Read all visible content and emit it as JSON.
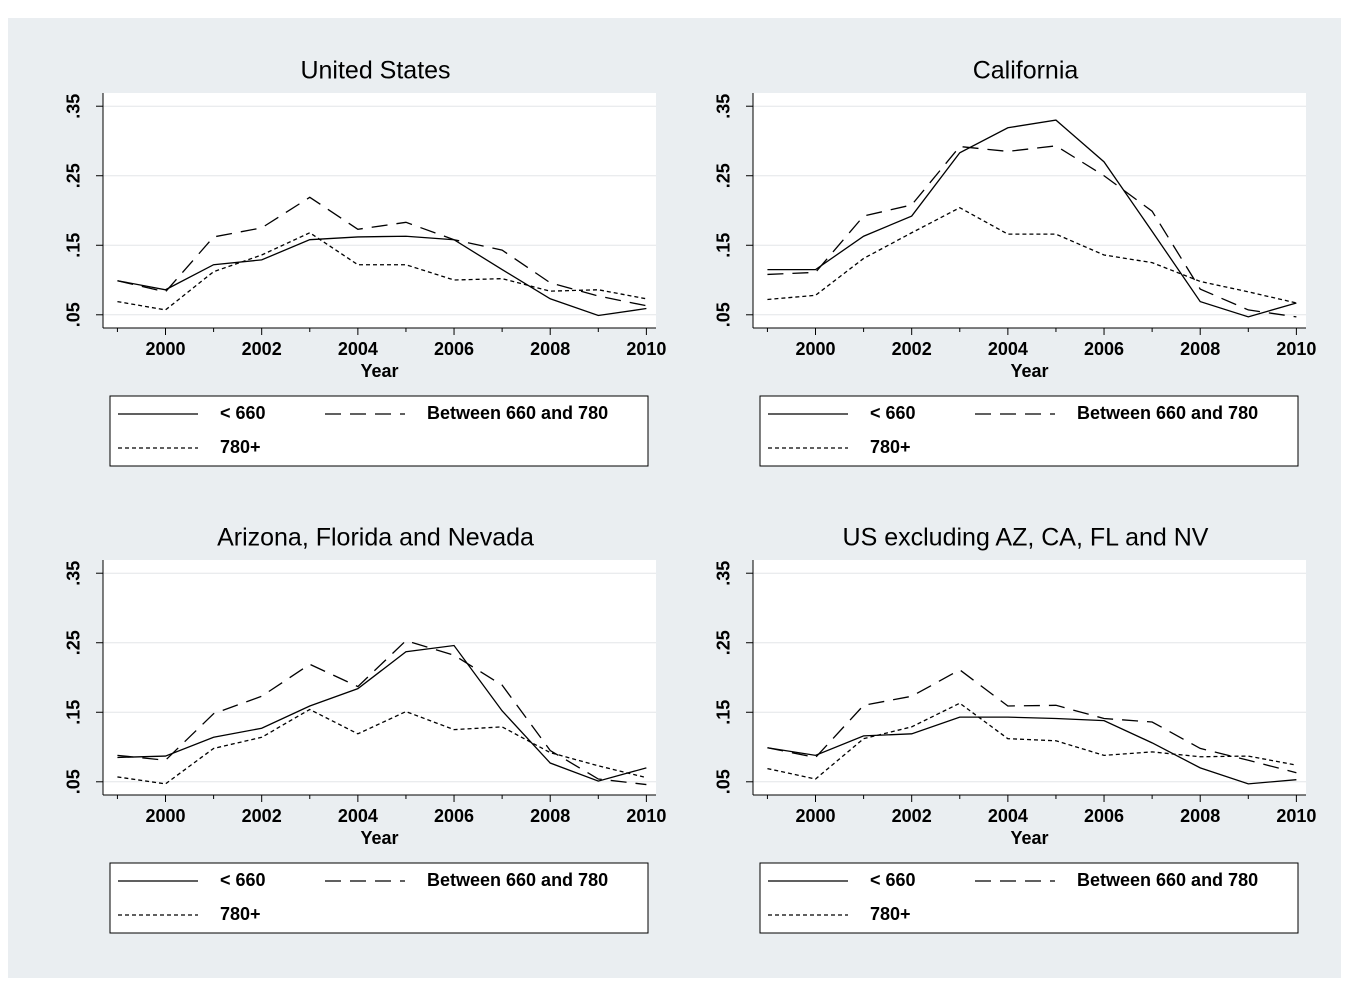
{
  "chart_data": [
    {
      "type": "line",
      "title": "United States",
      "xlabel": "Year",
      "x": [
        1999,
        2000,
        2001,
        2002,
        2003,
        2004,
        2005,
        2006,
        2007,
        2008,
        2009,
        2010
      ],
      "xlim": [
        1998.7,
        2010.2
      ],
      "xticks": [
        2000,
        2002,
        2004,
        2006,
        2008,
        2010
      ],
      "xminorticks": [
        1999,
        2001,
        2003,
        2005,
        2007,
        2009
      ],
      "ylim": [
        0.031,
        0.369
      ],
      "yticks": [
        {
          "value": 0.05,
          "label": ".05"
        },
        {
          "value": 0.15,
          "label": ".15"
        },
        {
          "value": 0.25,
          "label": ".25"
        },
        {
          "value": 0.35,
          "label": ".35"
        }
      ],
      "grid": true,
      "series": [
        {
          "name": "< 660",
          "color": "#000000",
          "line_style": "solid",
          "values": [
            0.099,
            0.086,
            0.122,
            0.129,
            0.158,
            0.162,
            0.163,
            0.158,
            0.115,
            0.073,
            0.049,
            0.059
          ]
        },
        {
          "name": "Between 660 and 780",
          "color": "#000000",
          "line_style": "longdash",
          "values": [
            0.099,
            0.083,
            0.162,
            0.175,
            0.219,
            0.173,
            0.183,
            0.158,
            0.143,
            0.096,
            0.077,
            0.063
          ]
        },
        {
          "name": "780+",
          "color": "#000000",
          "line_style": "shortdash",
          "values": [
            0.069,
            0.057,
            0.112,
            0.136,
            0.168,
            0.122,
            0.122,
            0.1,
            0.102,
            0.084,
            0.086,
            0.073
          ]
        }
      ]
    },
    {
      "type": "line",
      "title": "California",
      "xlabel": "Year",
      "x": [
        1999,
        2000,
        2001,
        2002,
        2003,
        2004,
        2005,
        2006,
        2007,
        2008,
        2009,
        2010
      ],
      "xlim": [
        1998.7,
        2010.2
      ],
      "xticks": [
        2000,
        2002,
        2004,
        2006,
        2008,
        2010
      ],
      "xminorticks": [
        1999,
        2001,
        2003,
        2005,
        2007,
        2009
      ],
      "ylim": [
        0.031,
        0.369
      ],
      "yticks": [
        {
          "value": 0.05,
          "label": ".05"
        },
        {
          "value": 0.15,
          "label": ".15"
        },
        {
          "value": 0.25,
          "label": ".25"
        },
        {
          "value": 0.35,
          "label": ".35"
        }
      ],
      "grid": true,
      "series": [
        {
          "name": "< 660",
          "color": "#000000",
          "line_style": "solid",
          "values": [
            0.115,
            0.115,
            0.163,
            0.192,
            0.283,
            0.319,
            0.33,
            0.27,
            0.17,
            0.069,
            0.047,
            0.067
          ]
        },
        {
          "name": "Between 660 and 780",
          "color": "#000000",
          "line_style": "longdash",
          "values": [
            0.108,
            0.111,
            0.192,
            0.208,
            0.292,
            0.285,
            0.293,
            0.25,
            0.199,
            0.087,
            0.057,
            0.047
          ]
        },
        {
          "name": "780+",
          "color": "#000000",
          "line_style": "shortdash",
          "values": [
            0.072,
            0.078,
            0.131,
            0.168,
            0.204,
            0.166,
            0.166,
            0.136,
            0.125,
            0.098,
            0.083,
            0.067
          ]
        }
      ]
    },
    {
      "type": "line",
      "title": "Arizona, Florida and Nevada",
      "xlabel": "Year",
      "x": [
        1999,
        2000,
        2001,
        2002,
        2003,
        2004,
        2005,
        2006,
        2007,
        2008,
        2009,
        2010
      ],
      "xlim": [
        1998.7,
        2010.2
      ],
      "xticks": [
        2000,
        2002,
        2004,
        2006,
        2008,
        2010
      ],
      "xminorticks": [
        1999,
        2001,
        2003,
        2005,
        2007,
        2009
      ],
      "ylim": [
        0.031,
        0.369
      ],
      "yticks": [
        {
          "value": 0.05,
          "label": ".05"
        },
        {
          "value": 0.15,
          "label": ".15"
        },
        {
          "value": 0.25,
          "label": ".25"
        },
        {
          "value": 0.35,
          "label": ".35"
        }
      ],
      "grid": true,
      "series": [
        {
          "name": "< 660",
          "color": "#000000",
          "line_style": "solid",
          "values": [
            0.085,
            0.087,
            0.114,
            0.127,
            0.159,
            0.184,
            0.237,
            0.246,
            0.152,
            0.077,
            0.051,
            0.07
          ]
        },
        {
          "name": "Between 660 and 780",
          "color": "#000000",
          "line_style": "longdash",
          "values": [
            0.088,
            0.081,
            0.148,
            0.173,
            0.219,
            0.187,
            0.253,
            0.232,
            0.189,
            0.095,
            0.054,
            0.046
          ]
        },
        {
          "name": "780+",
          "color": "#000000",
          "line_style": "shortdash",
          "values": [
            0.057,
            0.047,
            0.098,
            0.114,
            0.154,
            0.119,
            0.151,
            0.125,
            0.129,
            0.092,
            0.073,
            0.056
          ]
        }
      ]
    },
    {
      "type": "line",
      "title": "US excluding AZ, CA, FL and NV",
      "xlabel": "Year",
      "x": [
        1999,
        2000,
        2001,
        2002,
        2003,
        2004,
        2005,
        2006,
        2007,
        2008,
        2009,
        2010
      ],
      "xlim": [
        1998.7,
        2010.2
      ],
      "xticks": [
        2000,
        2002,
        2004,
        2006,
        2008,
        2010
      ],
      "xminorticks": [
        1999,
        2001,
        2003,
        2005,
        2007,
        2009
      ],
      "ylim": [
        0.031,
        0.369
      ],
      "yticks": [
        {
          "value": 0.05,
          "label": ".05"
        },
        {
          "value": 0.15,
          "label": ".15"
        },
        {
          "value": 0.25,
          "label": ".25"
        },
        {
          "value": 0.35,
          "label": ".35"
        }
      ],
      "grid": true,
      "series": [
        {
          "name": "< 660",
          "color": "#000000",
          "line_style": "solid",
          "values": [
            0.099,
            0.088,
            0.116,
            0.119,
            0.143,
            0.143,
            0.141,
            0.138,
            0.106,
            0.07,
            0.047,
            0.053
          ]
        },
        {
          "name": "Between 660 and 780",
          "color": "#000000",
          "line_style": "longdash",
          "values": [
            0.099,
            0.085,
            0.16,
            0.173,
            0.211,
            0.159,
            0.16,
            0.141,
            0.136,
            0.098,
            0.081,
            0.063
          ]
        },
        {
          "name": "780+",
          "color": "#000000",
          "line_style": "shortdash",
          "values": [
            0.069,
            0.054,
            0.112,
            0.129,
            0.163,
            0.112,
            0.109,
            0.088,
            0.093,
            0.086,
            0.087,
            0.074
          ]
        }
      ]
    }
  ]
}
